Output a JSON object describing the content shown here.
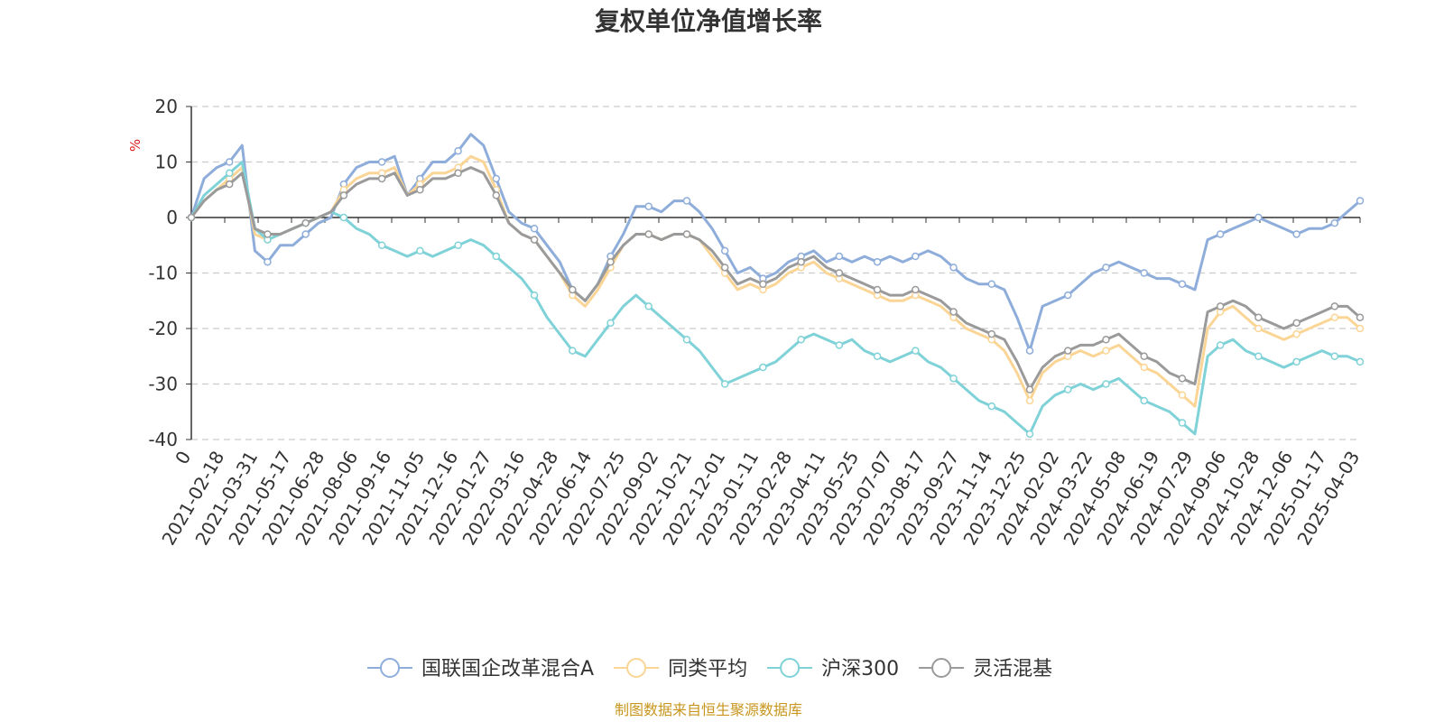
{
  "chart_data": {
    "type": "line",
    "title": "复权单位净值增长率",
    "ylabel": "%",
    "xlabel": "",
    "ylim": [
      -40,
      20
    ],
    "y_ticks": [
      20,
      10,
      0,
      -10,
      -20,
      -30,
      -40
    ],
    "grid": true,
    "legend_position": "bottom",
    "x_labels": [
      "0",
      "2021-02-18",
      "2021-03-31",
      "2021-05-17",
      "2021-06-28",
      "2021-08-06",
      "2021-09-16",
      "2021-11-05",
      "2021-12-16",
      "2022-01-27",
      "2022-03-16",
      "2022-04-28",
      "2022-06-14",
      "2022-07-25",
      "2022-09-02",
      "2022-10-21",
      "2022-12-01",
      "2023-01-11",
      "2023-02-28",
      "2023-04-11",
      "2023-05-25",
      "2023-07-07",
      "2023-08-17",
      "2023-09-27",
      "2023-11-14",
      "2023-12-25",
      "2024-02-02",
      "2024-03-22",
      "2024-05-08",
      "2024-06-19",
      "2024-07-29",
      "2024-09-06",
      "2024-10-28",
      "2024-12-06",
      "2025-01-17",
      "2025-04-03"
    ],
    "series": [
      {
        "name": "国联国企改革混合A",
        "color": "#8eadda",
        "values": [
          0,
          7,
          9,
          10,
          13,
          -6,
          -8,
          -5,
          -5,
          -3,
          -1,
          0,
          6,
          9,
          10,
          10,
          11,
          4,
          7,
          10,
          10,
          12,
          15,
          13,
          7,
          1,
          -1,
          -2,
          -5,
          -8,
          -13,
          -15,
          -12,
          -7,
          -3,
          2,
          2,
          1,
          3,
          3,
          1,
          -2,
          -6,
          -10,
          -9,
          -11,
          -10,
          -8,
          -7,
          -6,
          -8,
          -7,
          -8,
          -7,
          -8,
          -7,
          -8,
          -7,
          -6,
          -7,
          -9,
          -11,
          -12,
          -12,
          -13,
          -18,
          -24,
          -16,
          -15,
          -14,
          -12,
          -10,
          -9,
          -8,
          -9,
          -10,
          -11,
          -11,
          -12,
          -13,
          -4,
          -3,
          -2,
          -1,
          0,
          -1,
          -2,
          -3,
          -2,
          -2,
          -1,
          1,
          3
        ]
      },
      {
        "name": "同类平均",
        "color": "#fbd595",
        "values": [
          0,
          3,
          5,
          7,
          9,
          -3,
          -4,
          -3,
          -2,
          -1,
          0,
          1,
          5,
          7,
          8,
          8,
          9,
          4,
          6,
          8,
          8,
          9,
          11,
          10,
          5,
          -1,
          -3,
          -4,
          -7,
          -10,
          -14,
          -16,
          -13,
          -9,
          -5,
          -3,
          -3,
          -4,
          -3,
          -3,
          -4,
          -7,
          -10,
          -13,
          -12,
          -13,
          -12,
          -10,
          -9,
          -8,
          -10,
          -11,
          -12,
          -13,
          -14,
          -15,
          -15,
          -14,
          -15,
          -16,
          -18,
          -20,
          -21,
          -22,
          -24,
          -28,
          -33,
          -28,
          -26,
          -25,
          -24,
          -25,
          -24,
          -23,
          -25,
          -27,
          -28,
          -30,
          -32,
          -34,
          -20,
          -17,
          -16,
          -18,
          -20,
          -21,
          -22,
          -21,
          -20,
          -19,
          -18,
          -18,
          -20
        ]
      },
      {
        "name": "沪深300",
        "color": "#7fd2d7",
        "values": [
          0,
          4,
          6,
          8,
          10,
          -2,
          -4,
          -3,
          -2,
          -1,
          0,
          1,
          0,
          -2,
          -3,
          -5,
          -6,
          -7,
          -6,
          -7,
          -6,
          -5,
          -4,
          -5,
          -7,
          -9,
          -11,
          -14,
          -18,
          -21,
          -24,
          -25,
          -22,
          -19,
          -16,
          -14,
          -16,
          -18,
          -20,
          -22,
          -24,
          -27,
          -30,
          -29,
          -28,
          -27,
          -26,
          -24,
          -22,
          -21,
          -22,
          -23,
          -22,
          -24,
          -25,
          -26,
          -25,
          -24,
          -26,
          -27,
          -29,
          -31,
          -33,
          -34,
          -35,
          -37,
          -39,
          -34,
          -32,
          -31,
          -30,
          -31,
          -30,
          -29,
          -31,
          -33,
          -34,
          -35,
          -37,
          -39,
          -25,
          -23,
          -22,
          -24,
          -25,
          -26,
          -27,
          -26,
          -25,
          -24,
          -25,
          -25,
          -26
        ]
      },
      {
        "name": "灵活混基",
        "color": "#9a9a9a",
        "values": [
          0,
          3,
          5,
          6,
          8,
          -2,
          -3,
          -3,
          -2,
          -1,
          0,
          1,
          4,
          6,
          7,
          7,
          8,
          4,
          5,
          7,
          7,
          8,
          9,
          8,
          4,
          -1,
          -3,
          -4,
          -7,
          -10,
          -13,
          -15,
          -12,
          -8,
          -5,
          -3,
          -3,
          -4,
          -3,
          -3,
          -4,
          -6,
          -9,
          -12,
          -11,
          -12,
          -11,
          -9,
          -8,
          -7,
          -9,
          -10,
          -11,
          -12,
          -13,
          -14,
          -14,
          -13,
          -14,
          -15,
          -17,
          -19,
          -20,
          -21,
          -22,
          -26,
          -31,
          -27,
          -25,
          -24,
          -23,
          -23,
          -22,
          -21,
          -23,
          -25,
          -26,
          -28,
          -29,
          -30,
          -17,
          -16,
          -15,
          -16,
          -18,
          -19,
          -20,
          -19,
          -18,
          -17,
          -16,
          -16,
          -18
        ]
      }
    ]
  },
  "source": "制图数据来自恒生聚源数据库"
}
